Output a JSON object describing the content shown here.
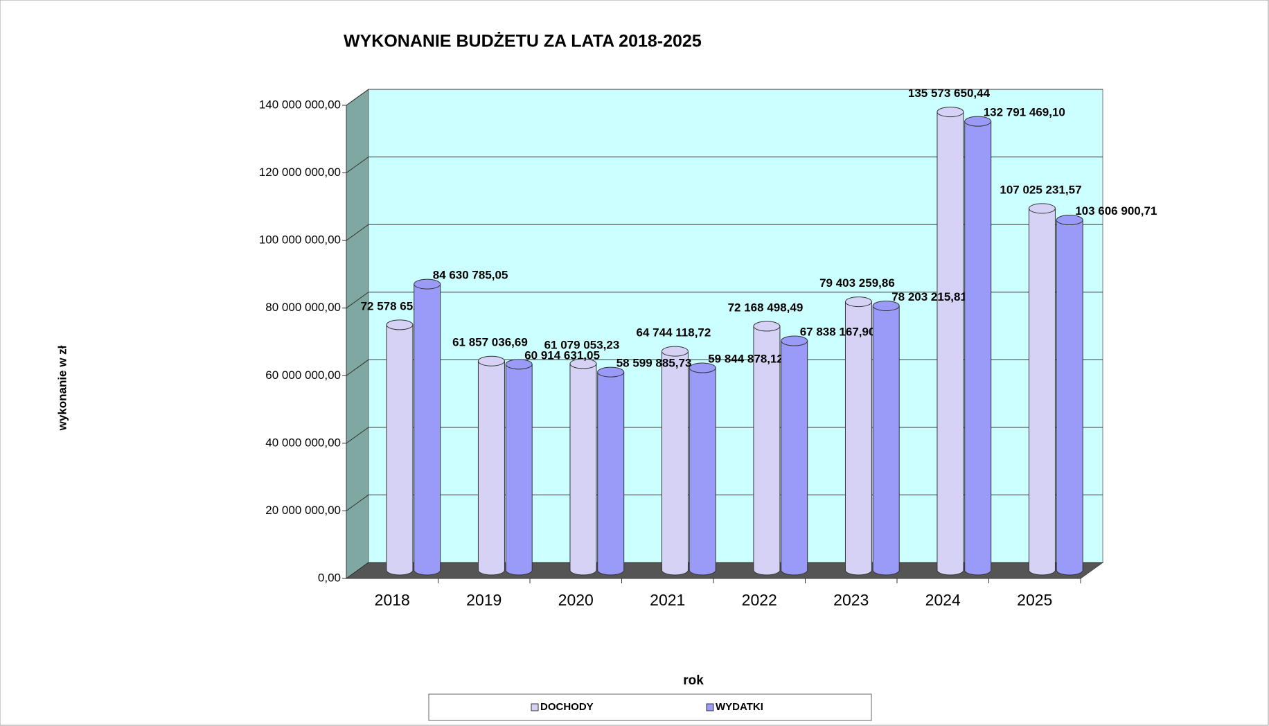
{
  "chart_data": {
    "type": "bar3d",
    "title": "WYKONANIE  BUDŻETU ZA LATA 2018-2025",
    "y_label": "wykonanie w zł",
    "x_label": "rok",
    "categories": [
      "2018",
      "2019",
      "2020",
      "2021",
      "2022",
      "2023",
      "2024",
      "2025"
    ],
    "series": [
      {
        "name": "DOCHODY",
        "color": "#d6d2f6",
        "values": [
          72578652.75,
          61857036.69,
          61079053.23,
          64744118.72,
          72168498.49,
          79403259.86,
          135573650.44,
          107025231.57
        ],
        "value_labels": [
          "72 578 652,75",
          "61 857 036,69",
          "61 079 053,23",
          "64 744 118,72",
          "72 168 498,49",
          "79 403 259,86",
          "135 573 650,44",
          "107 025 231,57"
        ]
      },
      {
        "name": "WYDATKI",
        "color": "#9a9af8",
        "values": [
          84630785.05,
          60914631.05,
          58599885.73,
          59844878.12,
          67838167.9,
          78203215.81,
          132791469.1,
          103606900.71
        ],
        "value_labels": [
          "84 630 785,05",
          "60 914 631,05",
          "58 599 885,73",
          "59 844 878,12",
          "67 838 167,90",
          "78 203 215,81",
          "132 791 469,10",
          "103 606 900,71"
        ]
      }
    ],
    "ylim": [
      0,
      140000000
    ],
    "yticks": [
      {
        "value": 0,
        "label": "0,00"
      },
      {
        "value": 20000000,
        "label": "20 000 000,00"
      },
      {
        "value": 40000000,
        "label": "40 000 000,00"
      },
      {
        "value": 60000000,
        "label": "60 000 000,00"
      },
      {
        "value": 80000000,
        "label": "80 000 000,00"
      },
      {
        "value": 100000000,
        "label": "100 000 000,00"
      },
      {
        "value": 120000000,
        "label": "120 000 000,00"
      },
      {
        "value": 140000000,
        "label": "140 000 000,00"
      }
    ],
    "grid": true,
    "legend": "bottom"
  }
}
